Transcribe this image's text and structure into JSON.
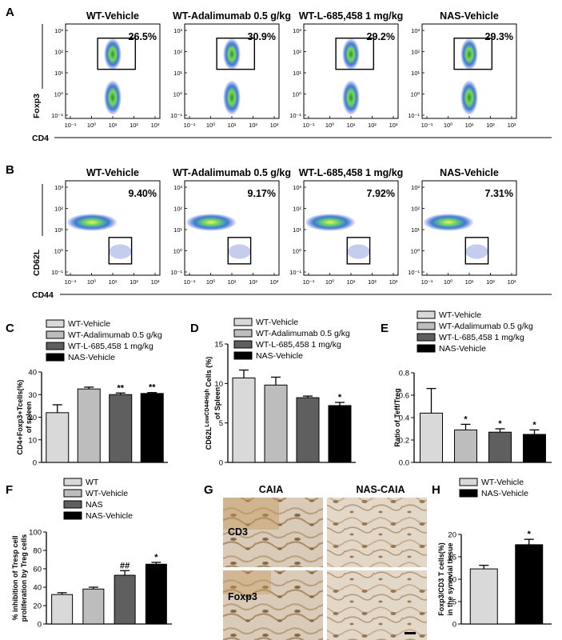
{
  "panel_letters": {
    "a": "A",
    "b": "B",
    "c": "C",
    "d": "D",
    "e": "E",
    "f": "F",
    "g": "G",
    "h": "H"
  },
  "panel_a": {
    "titles": [
      "WT-Vehicle",
      "WT-Adalimumab 0.5 g/kg",
      "WT-L-685,458 1 mg/kg",
      "NAS-Vehicle"
    ],
    "percents": [
      "26.5%",
      "30.9%",
      "29.2%",
      "29.3%"
    ],
    "y_axis": "Foxp3",
    "x_axis": "CD4",
    "y_ticks": [
      "10³",
      "10²",
      "10¹",
      "10⁰",
      "10⁻¹"
    ],
    "x_ticks": [
      "10⁻¹",
      "10⁰",
      "10¹",
      "10²",
      "10³"
    ]
  },
  "panel_b": {
    "titles": [
      "WT-Vehicle",
      "WT-Adalimumab 0.5 g/kg",
      "WT-L-685,458 1 mg/kg",
      "NAS-Vehicle"
    ],
    "percents": [
      "9.40%",
      "9.17%",
      "7.92%",
      "7.31%"
    ],
    "y_axis": "CD62L",
    "x_axis": "CD44",
    "y_ticks": [
      "10³",
      "10²",
      "10¹",
      "10⁰",
      "10⁻¹"
    ],
    "x_ticks": [
      "10⁻¹",
      "10⁰",
      "10¹",
      "10²",
      "10³"
    ]
  },
  "chart_data": [
    {
      "id": "C",
      "type": "bar",
      "categories": [
        "WT-Vehicle",
        "WT-Adalimumab 0.5 g/kg",
        "WT-L-685,458 1 mg/kg",
        "NAS-Vehicle"
      ],
      "values": [
        22,
        32.5,
        30,
        30.5
      ],
      "errors": [
        3.5,
        0.8,
        0.7,
        0.4
      ],
      "significance": [
        "",
        "",
        "**",
        "**"
      ],
      "colors": [
        "#d9d9d9",
        "#bdbdbd",
        "#5f5f5f",
        "#000000"
      ],
      "ylabel_line1": "CD4+Foxp3+Tcells(%)",
      "ylabel_line2": "of spleen",
      "ylim": [
        0,
        40
      ],
      "yticks": [
        "0",
        "10",
        "20",
        "30",
        "40"
      ]
    },
    {
      "id": "D",
      "type": "bar",
      "categories": [
        "WT-Vehicle",
        "WT-Adalimumab 0.5 g/kg",
        "WT-L-685,458 1 mg/kg",
        "NAS-Vehicle"
      ],
      "values": [
        10.7,
        9.8,
        8.2,
        7.2
      ],
      "errors": [
        1.0,
        1.0,
        0.2,
        0.4
      ],
      "significance": [
        "",
        "",
        "",
        "*"
      ],
      "colors": [
        "#d9d9d9",
        "#bdbdbd",
        "#5f5f5f",
        "#000000"
      ],
      "ylabel_line1": "CD62L^LowCD44^High Cells (%)",
      "ylabel_line2": "of Spleen",
      "ylim": [
        0,
        15
      ],
      "yticks": [
        "0",
        "5",
        "10",
        "15"
      ]
    },
    {
      "id": "E",
      "type": "bar",
      "categories": [
        "WT-Vehicle",
        "WT-Adalimumab 0.5 g/kg",
        "WT-L-685,458 1 mg/kg",
        "NAS-Vehicle"
      ],
      "values": [
        0.44,
        0.29,
        0.27,
        0.25
      ],
      "errors": [
        0.22,
        0.05,
        0.03,
        0.04
      ],
      "significance": [
        "",
        "*",
        "*",
        "*"
      ],
      "colors": [
        "#d9d9d9",
        "#bdbdbd",
        "#5f5f5f",
        "#000000"
      ],
      "ylabel_line1": "Ratio of Teff/Treg",
      "ylabel_line2": "",
      "ylim": [
        0,
        0.8
      ],
      "yticks": [
        "0.0",
        "0.2",
        "0.4",
        "0.6",
        "0.8"
      ]
    },
    {
      "id": "F",
      "type": "bar",
      "categories": [
        "WT",
        "WT-Vehicle",
        "NAS",
        "NAS-Vehicle"
      ],
      "values": [
        32,
        38,
        53,
        65
      ],
      "errors": [
        2,
        2,
        5,
        2
      ],
      "significance": [
        "",
        "",
        "##",
        "*"
      ],
      "colors": [
        "#d9d9d9",
        "#bdbdbd",
        "#5f5f5f",
        "#000000"
      ],
      "ylabel_line1": "% inhibition of Tresp cell",
      "ylabel_line2": "proliferation by Treg cells",
      "ylim": [
        0,
        100
      ],
      "yticks": [
        "0",
        "20",
        "40",
        "60",
        "80",
        "100"
      ]
    },
    {
      "id": "H",
      "type": "bar",
      "categories": [
        "WT-Vehicle",
        "NAS-Vehicle"
      ],
      "values": [
        12.3,
        17.7
      ],
      "errors": [
        0.8,
        1.2
      ],
      "significance": [
        "",
        "*"
      ],
      "colors": [
        "#d9d9d9",
        "#000000"
      ],
      "ylabel_line1": "Foxp3/CD3 T cells(%)",
      "ylabel_line2": "in the synovial tissue",
      "ylim": [
        0,
        20
      ],
      "yticks": [
        "0",
        "5",
        "10",
        "15",
        "20"
      ]
    }
  ],
  "panel_g": {
    "col1": "CAIA",
    "col2": "NAS-CAIA",
    "row1": "CD3",
    "row2": "Foxp3"
  }
}
